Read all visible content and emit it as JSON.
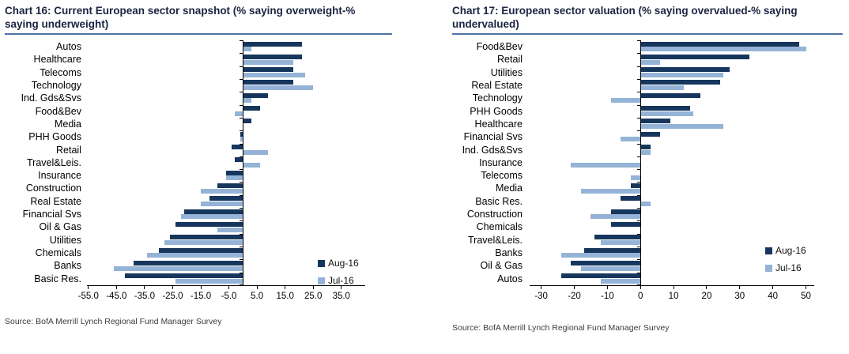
{
  "chart_data": [
    {
      "type": "bar",
      "orientation": "horizontal",
      "title": "Chart 16: Current European sector snapshot (% saying overweight-% saying underweight)",
      "categories": [
        "Autos",
        "Healthcare",
        "Telecoms",
        "Technology",
        "Ind. Gds&Svs",
        "Food&Bev",
        "Media",
        "PHH Goods",
        "Retail",
        "Travel&Leis.",
        "Insurance",
        "Construction",
        "Real Estate",
        "Financial Svs",
        "Oil & Gas",
        "Utilities",
        "Chemicals",
        "Banks",
        "Basic Res."
      ],
      "series": [
        {
          "name": "Aug-16",
          "color": "#17365D",
          "values": [
            21,
            21,
            18,
            18,
            9,
            6,
            3,
            -1,
            -4,
            -3,
            -6,
            -9,
            -12,
            -21,
            -24,
            -26,
            -30,
            -39,
            -42
          ]
        },
        {
          "name": "Jul-16",
          "color": "#95B3D7",
          "values": [
            3,
            18,
            22,
            25,
            3,
            -3,
            0,
            -1,
            9,
            6,
            -6,
            -15,
            -15,
            -22,
            -9,
            -28,
            -34,
            -46,
            -24
          ]
        }
      ],
      "xlim": [
        -55.5,
        43.5
      ],
      "xticks": [
        -55,
        -45,
        -35,
        -25,
        -15,
        -5,
        5,
        15,
        25,
        35
      ],
      "xtick_labels": [
        "-55.0",
        "-45.0",
        "-35.0",
        "-25.0",
        "-15.0",
        "-5.0",
        "5.0",
        "15.0",
        "25.0",
        "35.0"
      ],
      "grid": false,
      "legend_position": "inside lower right",
      "source": "Source: BofA Merrill Lynch Regional Fund Manager Survey"
    },
    {
      "type": "bar",
      "orientation": "horizontal",
      "title": "Chart 17: European sector valuation (% saying overvalued-% saying undervalued)",
      "categories": [
        "Food&Bev",
        "Retail",
        "Utilities",
        "Real Estate",
        "Technology",
        "PHH Goods",
        "Healthcare",
        "Financial Svs",
        "Ind. Gds&Svs",
        "Insurance",
        "Telecoms",
        "Media",
        "Basic Res.",
        "Construction",
        "Chemicals",
        "Travel&Leis.",
        "Banks",
        "Oil & Gas",
        "Autos"
      ],
      "series": [
        {
          "name": "Aug-16",
          "color": "#17365D",
          "values": [
            48,
            33,
            27,
            24,
            18,
            15,
            9,
            6,
            3,
            0,
            0,
            -3,
            -6,
            -9,
            -9,
            -14,
            -17,
            -21,
            -24
          ]
        },
        {
          "name": "Jul-16",
          "color": "#95B3D7",
          "values": [
            50,
            6,
            25,
            13,
            -9,
            16,
            25,
            -6,
            3,
            -21,
            -3,
            -18,
            3,
            -15,
            0,
            -12,
            -24,
            -18,
            -12
          ]
        }
      ],
      "xlim": [
        -33.5,
        52.5
      ],
      "xticks": [
        -30,
        -20,
        -10,
        0,
        10,
        20,
        30,
        40,
        50
      ],
      "xtick_labels": [
        "-30",
        "-20",
        "-10",
        "0",
        "10",
        "20",
        "30",
        "40",
        "50"
      ],
      "grid": false,
      "legend_position": "inside lower right",
      "source": "Source: BofA Merrill Lynch Regional Fund Manager Survey"
    }
  ],
  "colors": {
    "aug_16": "#17365D",
    "jul_16": "#95B3D7",
    "title_rule": "#4C74A4"
  }
}
